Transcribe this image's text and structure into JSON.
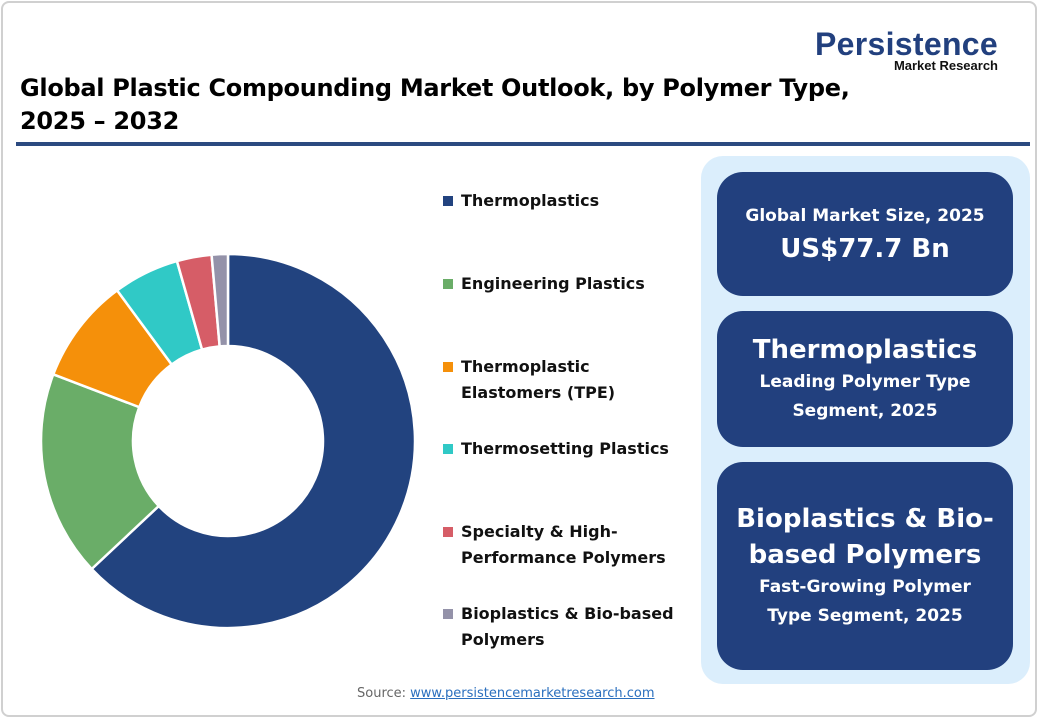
{
  "brand": {
    "name": "Persistence",
    "sub": "Market Research",
    "color": "#22407e"
  },
  "title": {
    "line1": "Global Plastic Compounding Market Outlook, by Polymer Type,",
    "line2": "2025 – 2032"
  },
  "legend": [
    {
      "label": "Thermoplastics",
      "color": "#22437f"
    },
    {
      "label": "Engineering Plastics",
      "color": "#6aad68"
    },
    {
      "label": "Thermoplastic Elastomers (TPE)",
      "color": "#f5900a"
    },
    {
      "label": "Thermosetting Plastics",
      "color": "#30c9c6"
    },
    {
      "label": "Specialty & High-Performance Polymers",
      "color": "#d65d67"
    },
    {
      "label": "Bioplastics & Bio-based Polymers",
      "color": "#9492a9"
    }
  ],
  "cards": {
    "market_size": {
      "label": "Global Market Size, 2025",
      "value": "US$77.7 Bn"
    },
    "leading": {
      "name": "Thermoplastics",
      "line1": "Leading Polymer Type",
      "line2": "Segment, 2025"
    },
    "fastest": {
      "name1": "Bioplastics & Bio-",
      "name2": "based Polymers",
      "line1": "Fast-Growing Polymer",
      "line2": "Type Segment, 2025"
    }
  },
  "source": {
    "label": "Source:",
    "link": "www.persistencemarketresearch.com"
  },
  "chart_data": {
    "type": "pie",
    "variant": "donut",
    "title": "Global Plastic Compounding Market Outlook, by Polymer Type, 2025 – 2032",
    "categories": [
      "Thermoplastics",
      "Engineering Plastics",
      "Thermoplastic Elastomers (TPE)",
      "Thermosetting Plastics",
      "Specialty & High-Performance Polymers",
      "Bioplastics & Bio-based Polymers"
    ],
    "values": [
      63.0,
      17.8,
      9.1,
      5.7,
      3.0,
      1.4
    ],
    "unit": "% share (estimated from slice angles)",
    "colors": [
      "#22437f",
      "#6aad68",
      "#f5900a",
      "#30c9c6",
      "#d65d67",
      "#9492a9"
    ],
    "legend_position": "right",
    "start_angle": "12 o'clock, clockwise"
  }
}
